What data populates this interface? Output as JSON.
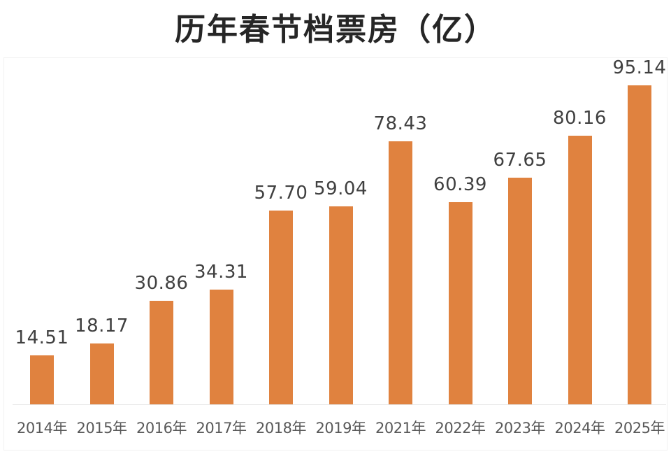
{
  "title": "历年春节档票房（亿）",
  "colors": {
    "bar": "#e0823f",
    "title": "#262626",
    "label": "#404040",
    "axis_text": "#595959"
  },
  "chart_data": {
    "type": "bar",
    "title": "历年春节档票房（亿）",
    "xlabel": "",
    "ylabel": "",
    "categories": [
      "2014年",
      "2015年",
      "2016年",
      "2017年",
      "2018年",
      "2019年",
      "2021年",
      "2022年",
      "2023年",
      "2024年",
      "2025年"
    ],
    "values": [
      14.51,
      18.17,
      30.86,
      34.31,
      57.7,
      59.04,
      78.43,
      60.39,
      67.65,
      80.16,
      95.14
    ],
    "value_labels": [
      "14.51",
      "18.17",
      "30.86",
      "34.31",
      "57.70",
      "59.04",
      "78.43",
      "60.39",
      "67.65",
      "80.16",
      "95.14"
    ],
    "ylim": [
      0,
      95.14
    ],
    "grid": false,
    "legend": "none",
    "data_labels": true
  }
}
